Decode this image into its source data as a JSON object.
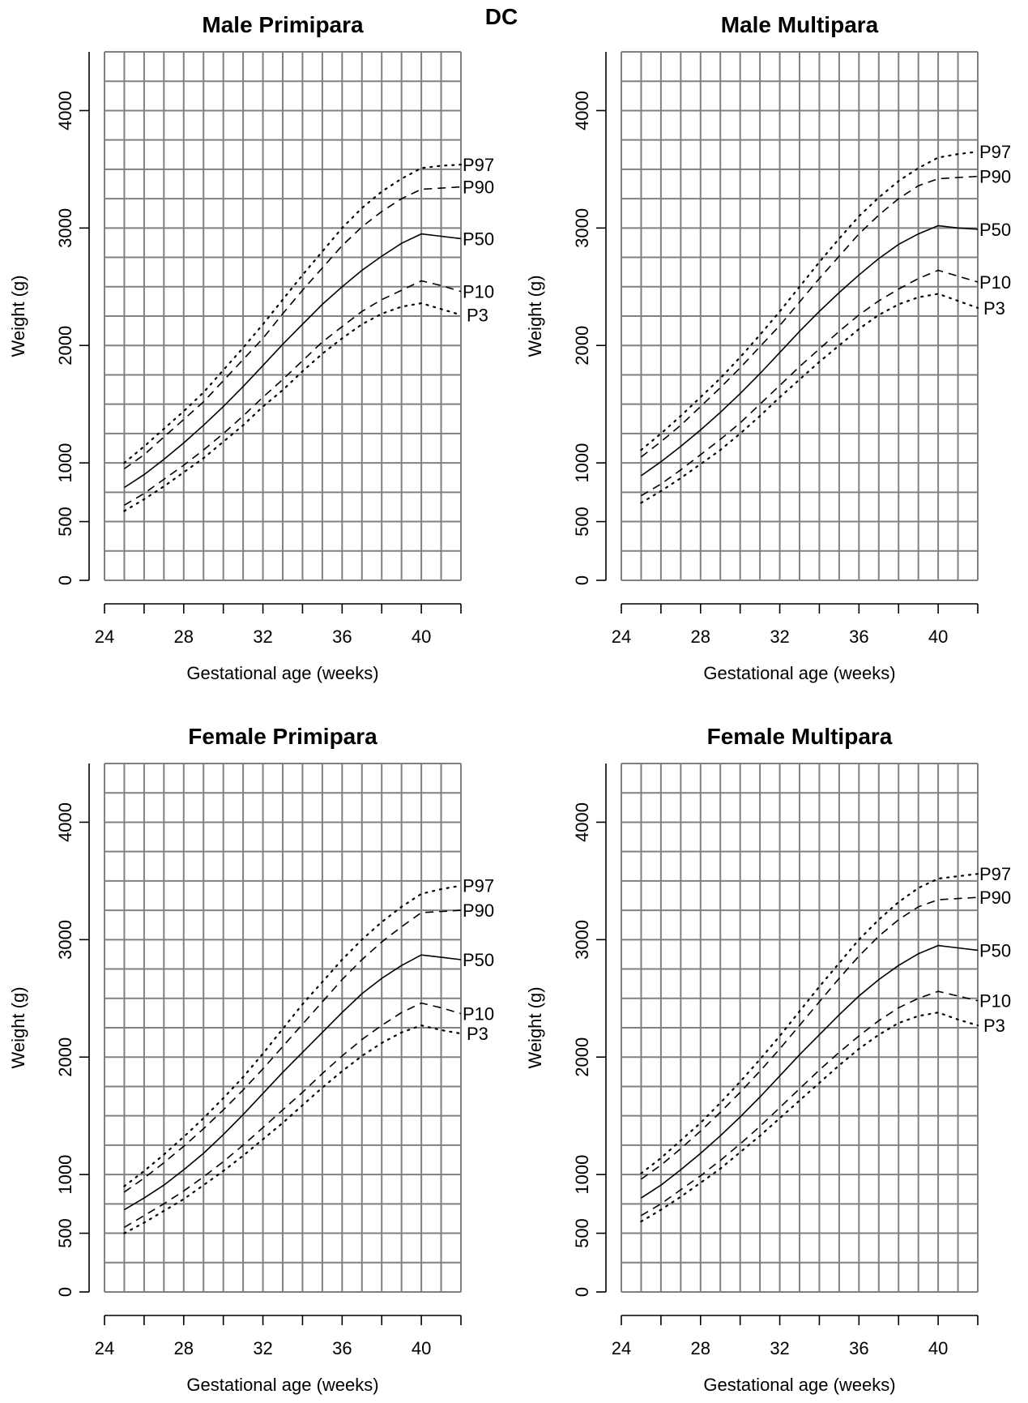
{
  "figure_label": "DC",
  "series_styles": {
    "P97": "dotted",
    "P90": "dashed",
    "P50": "solid",
    "P10": "dashed",
    "P3": "dotted"
  },
  "colors": {
    "grid": "#808080",
    "line": "#000000",
    "background": "#ffffff"
  },
  "chart_data": [
    {
      "type": "line",
      "title": "Male Primipara",
      "xlabel": "Gestational age (weeks)",
      "ylabel": "Weight (g)",
      "xlim": [
        24,
        42
      ],
      "ylim": [
        0,
        4500
      ],
      "xticks": [
        "24",
        "28",
        "32",
        "36",
        "40"
      ],
      "yticks": [
        "0",
        "500",
        "1000",
        "2000",
        "3000",
        "4000"
      ],
      "grid": true,
      "x": [
        25,
        26,
        27,
        28,
        29,
        30,
        31,
        32,
        33,
        34,
        35,
        36,
        37,
        38,
        39,
        40,
        41,
        42
      ],
      "series": [
        {
          "name": "P97",
          "values": [
            1000,
            1140,
            1290,
            1440,
            1600,
            1790,
            1980,
            2180,
            2390,
            2600,
            2800,
            3000,
            3170,
            3310,
            3420,
            3510,
            3530,
            3540
          ]
        },
        {
          "name": "P90",
          "values": [
            950,
            1070,
            1220,
            1370,
            1520,
            1700,
            1880,
            2060,
            2270,
            2470,
            2660,
            2850,
            3010,
            3140,
            3250,
            3330,
            3340,
            3350
          ]
        },
        {
          "name": "P50",
          "values": [
            790,
            900,
            1030,
            1170,
            1320,
            1480,
            1650,
            1830,
            2010,
            2180,
            2350,
            2500,
            2640,
            2760,
            2870,
            2950,
            2930,
            2910
          ]
        },
        {
          "name": "P10",
          "values": [
            640,
            740,
            860,
            980,
            1110,
            1250,
            1400,
            1560,
            1710,
            1870,
            2030,
            2160,
            2290,
            2390,
            2470,
            2550,
            2510,
            2460
          ]
        },
        {
          "name": "P3",
          "values": [
            590,
            690,
            800,
            920,
            1040,
            1180,
            1320,
            1480,
            1620,
            1780,
            1930,
            2060,
            2180,
            2270,
            2330,
            2360,
            2310,
            2260
          ]
        }
      ]
    },
    {
      "type": "line",
      "title": "Male Multipara",
      "xlabel": "Gestational age (weeks)",
      "ylabel": "Weight (g)",
      "xlim": [
        24,
        42
      ],
      "ylim": [
        0,
        4500
      ],
      "xticks": [
        "24",
        "28",
        "32",
        "36",
        "40"
      ],
      "yticks": [
        "0",
        "500",
        "1000",
        "2000",
        "3000",
        "4000"
      ],
      "grid": true,
      "x": [
        25,
        26,
        27,
        28,
        29,
        30,
        31,
        32,
        33,
        34,
        35,
        36,
        37,
        38,
        39,
        40,
        41,
        42
      ],
      "series": [
        {
          "name": "P97",
          "values": [
            1110,
            1250,
            1400,
            1560,
            1720,
            1900,
            2090,
            2290,
            2500,
            2710,
            2910,
            3100,
            3260,
            3400,
            3510,
            3600,
            3630,
            3650
          ]
        },
        {
          "name": "P90",
          "values": [
            1050,
            1180,
            1320,
            1480,
            1640,
            1810,
            1990,
            2170,
            2370,
            2570,
            2760,
            2950,
            3110,
            3250,
            3360,
            3420,
            3430,
            3440
          ]
        },
        {
          "name": "P50",
          "values": [
            890,
            1010,
            1140,
            1280,
            1430,
            1590,
            1760,
            1940,
            2120,
            2290,
            2450,
            2600,
            2740,
            2860,
            2950,
            3020,
            3000,
            2990
          ]
        },
        {
          "name": "P10",
          "values": [
            720,
            820,
            940,
            1070,
            1200,
            1340,
            1500,
            1660,
            1820,
            1970,
            2120,
            2260,
            2380,
            2480,
            2570,
            2640,
            2590,
            2540
          ]
        },
        {
          "name": "P3",
          "values": [
            660,
            760,
            870,
            990,
            1110,
            1250,
            1400,
            1560,
            1710,
            1860,
            2000,
            2140,
            2260,
            2350,
            2410,
            2440,
            2380,
            2320
          ]
        }
      ]
    },
    {
      "type": "line",
      "title": "Female Primipara",
      "xlabel": "Gestational age (weeks)",
      "ylabel": "Weight (g)",
      "xlim": [
        24,
        42
      ],
      "ylim": [
        0,
        4500
      ],
      "xticks": [
        "24",
        "28",
        "32",
        "36",
        "40"
      ],
      "yticks": [
        "0",
        "500",
        "1000",
        "2000",
        "3000",
        "4000"
      ],
      "grid": true,
      "x": [
        25,
        26,
        27,
        28,
        29,
        30,
        31,
        32,
        33,
        34,
        35,
        36,
        37,
        38,
        39,
        40,
        41,
        42
      ],
      "series": [
        {
          "name": "P97",
          "values": [
            900,
            1030,
            1170,
            1320,
            1480,
            1650,
            1830,
            2030,
            2240,
            2450,
            2640,
            2830,
            3000,
            3150,
            3280,
            3390,
            3430,
            3460
          ]
        },
        {
          "name": "P90",
          "values": [
            850,
            970,
            1100,
            1240,
            1390,
            1550,
            1720,
            1900,
            2090,
            2280,
            2470,
            2660,
            2830,
            2980,
            3110,
            3230,
            3240,
            3250
          ]
        },
        {
          "name": "P50",
          "values": [
            700,
            800,
            910,
            1040,
            1180,
            1340,
            1510,
            1690,
            1870,
            2040,
            2210,
            2380,
            2540,
            2670,
            2780,
            2870,
            2850,
            2830
          ]
        },
        {
          "name": "P10",
          "values": [
            550,
            650,
            750,
            860,
            980,
            1110,
            1250,
            1400,
            1550,
            1700,
            1860,
            2010,
            2150,
            2270,
            2380,
            2460,
            2420,
            2370
          ]
        },
        {
          "name": "P3",
          "values": [
            500,
            590,
            690,
            790,
            910,
            1030,
            1160,
            1300,
            1440,
            1590,
            1740,
            1880,
            2010,
            2120,
            2210,
            2270,
            2230,
            2200
          ]
        }
      ]
    },
    {
      "type": "line",
      "title": "Female Multipara",
      "xlabel": "Gestational age (weeks)",
      "ylabel": "Weight (g)",
      "xlim": [
        24,
        42
      ],
      "ylim": [
        0,
        4500
      ],
      "xticks": [
        "24",
        "28",
        "32",
        "36",
        "40"
      ],
      "yticks": [
        "0",
        "500",
        "1000",
        "2000",
        "3000",
        "4000"
      ],
      "grid": true,
      "x": [
        25,
        26,
        27,
        28,
        29,
        30,
        31,
        32,
        33,
        34,
        35,
        36,
        37,
        38,
        39,
        40,
        41,
        42
      ],
      "series": [
        {
          "name": "P97",
          "values": [
            1010,
            1140,
            1290,
            1440,
            1610,
            1790,
            1980,
            2180,
            2390,
            2600,
            2800,
            3000,
            3170,
            3320,
            3440,
            3520,
            3540,
            3560
          ]
        },
        {
          "name": "P90",
          "values": [
            960,
            1080,
            1220,
            1370,
            1530,
            1700,
            1880,
            2070,
            2270,
            2470,
            2670,
            2860,
            3030,
            3170,
            3280,
            3340,
            3350,
            3360
          ]
        },
        {
          "name": "P50",
          "values": [
            800,
            910,
            1040,
            1180,
            1330,
            1490,
            1660,
            1840,
            2020,
            2190,
            2360,
            2520,
            2660,
            2780,
            2880,
            2950,
            2930,
            2910
          ]
        },
        {
          "name": "P10",
          "values": [
            650,
            750,
            870,
            990,
            1120,
            1260,
            1410,
            1570,
            1730,
            1890,
            2040,
            2180,
            2310,
            2420,
            2500,
            2560,
            2520,
            2480
          ]
        },
        {
          "name": "P3",
          "values": [
            600,
            700,
            810,
            930,
            1050,
            1190,
            1330,
            1480,
            1630,
            1780,
            1930,
            2070,
            2190,
            2290,
            2350,
            2380,
            2320,
            2270
          ]
        }
      ]
    }
  ]
}
